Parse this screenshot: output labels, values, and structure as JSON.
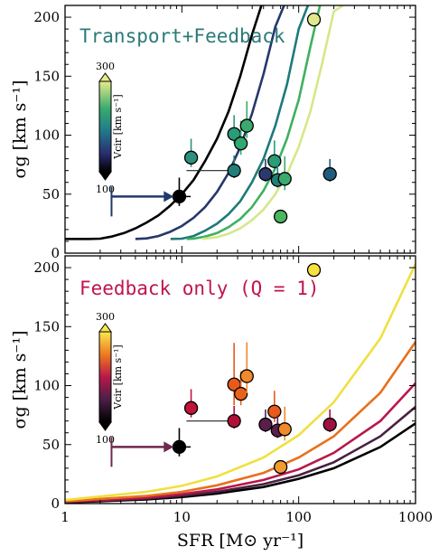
{
  "figure": {
    "xlabel": "SFR [M⊙ yr⁻¹]",
    "ylabel": "σg [km s⁻¹]"
  },
  "colors": {
    "top_title": "#2a7a78",
    "bottom_title": "#c0144b",
    "top_arrow": "#1f3a6b",
    "bottom_arrow": "#6e2a4e"
  },
  "chart_data": [
    {
      "type": "scatter",
      "panel": "top",
      "title": "Transport+Feedback",
      "xscale": "log",
      "xlim": [
        1,
        1000
      ],
      "ylim": [
        0,
        210
      ],
      "yticks": [
        0,
        50,
        100,
        150,
        200
      ],
      "xticks": [
        1,
        10,
        100,
        1000
      ],
      "xticklabels": [
        "1",
        "10",
        "100",
        "1000"
      ],
      "colorbar": {
        "label": "Vcir [km s⁻¹]",
        "min_label": "100",
        "max_label": "300",
        "min": 100,
        "max": 300,
        "cmap": "viridis"
      },
      "arrow": {
        "direction": "right",
        "from_x": 2.5,
        "to_x": 7,
        "y": 48
      },
      "curves": [
        {
          "vcir": 100,
          "color": "#000000",
          "x": [
            1.0,
            1.3,
            1.6,
            2.0,
            2.5,
            3.2,
            4.0,
            5.0,
            6.3,
            7.9,
            10.0,
            12.6,
            15.8,
            20.0,
            25.1,
            31.6,
            39.8,
            48.0
          ],
          "y": [
            12,
            12,
            12,
            12.3,
            14,
            17,
            21,
            26,
            32,
            40,
            50,
            62,
            78,
            97,
            120,
            150,
            185,
            210
          ]
        },
        {
          "vcir": 150,
          "color": "#25386d",
          "x": [
            4,
            5,
            6.3,
            7.9,
            10,
            12.6,
            15.8,
            20,
            25.1,
            31.6,
            39.8,
            50.1,
            63.1,
            75
          ],
          "y": [
            12,
            12.5,
            14.5,
            18,
            23,
            30,
            39,
            52,
            68,
            90,
            118,
            152,
            192,
            210
          ]
        },
        {
          "vcir": 200,
          "color": "#1f7a7a",
          "x": [
            8,
            10,
            12.6,
            15.8,
            20,
            25.1,
            31.6,
            39.8,
            50.1,
            63.1,
            79.4,
            100,
            120
          ],
          "y": [
            12,
            12.3,
            14.5,
            19,
            25,
            33,
            44,
            60,
            80,
            108,
            143,
            190,
            210
          ]
        },
        {
          "vcir": 250,
          "color": "#40b060",
          "x": [
            11,
            12.6,
            15.8,
            20,
            25.1,
            31.6,
            39.8,
            50.1,
            63.1,
            79.4,
            100,
            126,
            152
          ],
          "y": [
            12,
            12.3,
            14,
            17,
            22,
            29,
            39,
            53,
            72,
            97,
            130,
            175,
            210
          ]
        },
        {
          "vcir": 300,
          "color": "#d4e88a",
          "x": [
            15,
            20,
            25.1,
            31.6,
            39.8,
            50.1,
            63.1,
            79.4,
            100,
            126,
            158,
            200,
            240
          ],
          "y": [
            12,
            13.5,
            16.5,
            21,
            28,
            37,
            50,
            67,
            90,
            120,
            160,
            205,
            210
          ]
        }
      ],
      "points": [
        {
          "x": 9.5,
          "y": 48,
          "color": "#000000",
          "xerr": 2.0,
          "yerr": 10,
          "errcolor": "#000000"
        },
        {
          "x": 12,
          "y": 81,
          "color": "#2f8f7e",
          "yerr": 10,
          "errcolor": "#2f8f7e"
        },
        {
          "x": 28,
          "y": 70,
          "color": "#217e78",
          "yerr": 8,
          "errcolor": "#217e78",
          "hline_to": 48
        },
        {
          "x": 28,
          "y": 101,
          "color": "#2a9c78",
          "yerr": 10,
          "errcolor": "#2a9c78"
        },
        {
          "x": 32,
          "y": 93,
          "color": "#2fa872",
          "yerr": 12,
          "errcolor": "#2fa872"
        },
        {
          "x": 36,
          "y": 108,
          "color": "#3aaa6e",
          "yerr": 13,
          "errcolor": "#3aaa6e"
        },
        {
          "x": 52,
          "y": 67,
          "color": "#2a3a6e",
          "yerr": 8,
          "errcolor": "#2a3a6e"
        },
        {
          "x": 62,
          "y": 78,
          "color": "#2a9c78",
          "yerr": 11,
          "errcolor": "#2a9c78"
        },
        {
          "x": 66,
          "y": 62,
          "color": "#217e78",
          "yerr": 8,
          "errcolor": "#217e78"
        },
        {
          "x": 76,
          "y": 63,
          "color": "#3aaa6e",
          "yerr": 12,
          "errcolor": "#3aaa6e"
        },
        {
          "x": 70,
          "y": 31,
          "color": "#48b85e",
          "yerr": 0,
          "errcolor": "#48b85e"
        },
        {
          "x": 135,
          "y": 198,
          "color": "#dfe88a",
          "yerr": 0,
          "errcolor": "#dfe88a"
        },
        {
          "x": 185,
          "y": 67,
          "color": "#1f5c7c",
          "yerr": 8,
          "errcolor": "#1f5c7c"
        }
      ]
    },
    {
      "type": "scatter",
      "panel": "bottom",
      "title": "Feedback only (Q = 1)",
      "xscale": "log",
      "xlim": [
        1,
        1000
      ],
      "ylim": [
        0,
        210
      ],
      "yticks": [
        0,
        50,
        100,
        150,
        200
      ],
      "xticks": [
        1,
        10,
        100,
        1000
      ],
      "xticklabels": [
        "1",
        "10",
        "100",
        "1000"
      ],
      "colorbar": {
        "label": "Vcir [km s⁻¹]",
        "min_label": "100",
        "max_label": "300",
        "min": 100,
        "max": 300,
        "cmap": "inferno"
      },
      "arrow": {
        "direction": "right",
        "from_x": 2.5,
        "to_x": 7,
        "y": 48
      },
      "curves": [
        {
          "vcir": 100,
          "color": "#000000",
          "x": [
            1,
            2,
            5,
            10,
            20,
            50,
            100,
            200,
            500,
            1000
          ],
          "y": [
            1,
            2,
            3.5,
            5.5,
            8.5,
            14,
            21,
            30,
            48,
            68
          ]
        },
        {
          "vcir": 150,
          "color": "#4a2040",
          "x": [
            1,
            2,
            5,
            10,
            20,
            50,
            100,
            200,
            500,
            1000
          ],
          "y": [
            1.2,
            2.5,
            4.2,
            6.5,
            10,
            16.5,
            24,
            35,
            57,
            82
          ]
        },
        {
          "vcir": 200,
          "color": "#b8184a",
          "x": [
            1,
            2,
            5,
            10,
            20,
            50,
            100,
            200,
            500,
            1000
          ],
          "y": [
            1.5,
            3,
            5,
            8,
            12,
            20,
            29,
            43,
            70,
            102
          ]
        },
        {
          "vcir": 250,
          "color": "#e8701c",
          "x": [
            1,
            2,
            5,
            10,
            20,
            50,
            100,
            200,
            500,
            1000
          ],
          "y": [
            2,
            4,
            6.5,
            10,
            15.5,
            26,
            39,
            57,
            94,
            137
          ]
        },
        {
          "vcir": 300,
          "color": "#f0e040",
          "x": [
            1,
            2,
            5,
            10,
            20,
            50,
            100,
            200,
            500,
            1000
          ],
          "y": [
            3,
            6,
            10,
            15,
            23,
            39,
            58,
            86,
            140,
            203
          ]
        }
      ],
      "points": [
        {
          "x": 9.5,
          "y": 48,
          "color": "#000000",
          "xerr": 2.0,
          "yerr": 10,
          "errcolor": "#000000"
        },
        {
          "x": 12,
          "y": 81,
          "color": "#c0143c",
          "yerr": 10,
          "errcolor": "#c0143c"
        },
        {
          "x": 28,
          "y": 70,
          "color": "#b0103a",
          "yerr": 8,
          "errcolor": "#b0103a",
          "hline_to": 48
        },
        {
          "x": 28,
          "y": 101,
          "color": "#e85a1c",
          "yerr": 22,
          "errcolor": "#e85a1c"
        },
        {
          "x": 32,
          "y": 93,
          "color": "#e8621a",
          "yerr": 12,
          "errcolor": "#e8621a"
        },
        {
          "x": 36,
          "y": 108,
          "color": "#f08a2a",
          "yerr": 18,
          "errcolor": "#f08a2a"
        },
        {
          "x": 52,
          "y": 67,
          "color": "#5a1e4a",
          "yerr": 8,
          "errcolor": "#5a1e4a"
        },
        {
          "x": 62,
          "y": 78,
          "color": "#e85a1c",
          "yerr": 11,
          "errcolor": "#e85a1c"
        },
        {
          "x": 66,
          "y": 62,
          "color": "#5a1e4a",
          "yerr": 8,
          "errcolor": "#5a1e4a"
        },
        {
          "x": 76,
          "y": 63,
          "color": "#f08a2a",
          "yerr": 12,
          "errcolor": "#f08a2a"
        },
        {
          "x": 70,
          "y": 31,
          "color": "#f09a30",
          "yerr": 0,
          "errcolor": "#f09a30"
        },
        {
          "x": 135,
          "y": 198,
          "color": "#f8e040",
          "yerr": 0,
          "errcolor": "#f8e040"
        },
        {
          "x": 185,
          "y": 67,
          "color": "#a01040",
          "yerr": 8,
          "errcolor": "#a01040"
        }
      ]
    }
  ]
}
